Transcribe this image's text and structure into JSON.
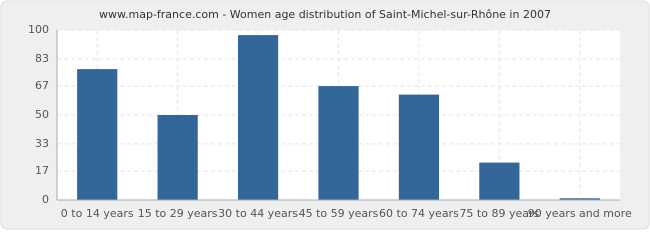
{
  "chart_data": {
    "type": "bar",
    "title": "www.map-france.com - Women age distribution of Saint-Michel-sur-Rhône in 2007",
    "categories": [
      "0 to 14 years",
      "15 to 29 years",
      "30 to 44 years",
      "45 to 59 years",
      "60 to 74 years",
      "75 to 89 years",
      "90 years and more"
    ],
    "values": [
      77,
      50,
      97,
      67,
      62,
      22,
      1
    ],
    "color": "#336699",
    "ylim": [
      0,
      100
    ],
    "yticks": [
      0,
      17,
      33,
      50,
      67,
      83,
      100
    ],
    "grid": true
  }
}
